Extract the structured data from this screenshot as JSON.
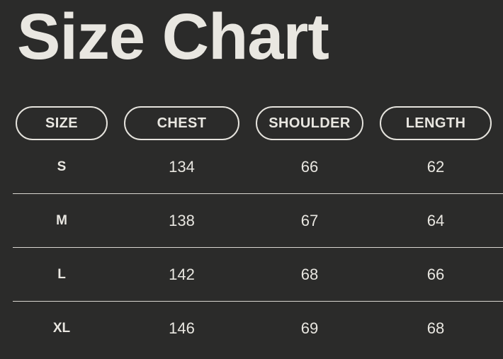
{
  "page": {
    "title": "Size Chart"
  },
  "colors": {
    "background": "#2B2B2A",
    "text": "#E9E7E1",
    "pill_border": "#E5E3DD",
    "divider": "#D9D7D1"
  },
  "chart_data": {
    "type": "table",
    "title": "Size Chart",
    "headers": [
      "SIZE",
      "CHEST",
      "SHOULDER",
      "LENGTH"
    ],
    "rows": [
      {
        "size": "S",
        "chest": "134",
        "shoulder": "66",
        "length": "62"
      },
      {
        "size": "M",
        "chest": "138",
        "shoulder": "67",
        "length": "64"
      },
      {
        "size": "L",
        "chest": "142",
        "shoulder": "68",
        "length": "66"
      },
      {
        "size": "XL",
        "chest": "146",
        "shoulder": "69",
        "length": "68"
      }
    ]
  }
}
